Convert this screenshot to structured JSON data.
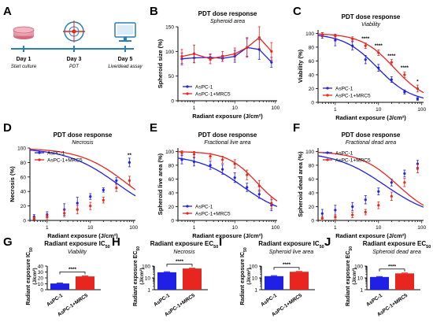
{
  "figure": {
    "panel_letters": [
      "A",
      "B",
      "C",
      "D",
      "E",
      "F",
      "G",
      "H",
      "I",
      "J"
    ],
    "colors": {
      "blue": "#1f1fe6",
      "red": "#e6261f"
    }
  },
  "timeline": {
    "days": [
      {
        "day": "Day 1",
        "label": "Start culture",
        "icon": "culture-dish-icon"
      },
      {
        "day": "Day 3",
        "label": "PDT",
        "icon": "laser-target-icon"
      },
      {
        "day": "Day 5",
        "label": "Live/dead assay",
        "icon": "monitor-icon"
      }
    ]
  },
  "chart_data": [
    {
      "panel": "B",
      "type": "line",
      "title": "PDT dose response",
      "subtitle": "Spheroid area",
      "xlabel": "Radiant exposure (J/cm²)",
      "ylabel": "Spheroid size (%)",
      "xscale": "log",
      "xlim": [
        0.4,
        110
      ],
      "ylim": [
        0,
        150
      ],
      "xticks": [
        1,
        10,
        100
      ],
      "yticks": [
        0,
        50,
        100,
        150
      ],
      "legend": "bottom-left",
      "connect": "line",
      "series": [
        {
          "name": "AsPC-1",
          "color": "blue",
          "x": [
            0.5,
            1,
            2.5,
            5,
            10,
            20,
            40,
            80
          ],
          "y": [
            85,
            87,
            88,
            86,
            90,
            108,
            104,
            78
          ],
          "err": [
            12,
            10,
            6,
            6,
            12,
            18,
            20,
            10
          ]
        },
        {
          "name": "AsPC-1+MRC5",
          "color": "red",
          "x": [
            0.5,
            1,
            2.5,
            5,
            10,
            20,
            40,
            80
          ],
          "y": [
            90,
            95,
            85,
            90,
            95,
            108,
            128,
            100
          ],
          "err": [
            14,
            18,
            10,
            10,
            12,
            20,
            22,
            18
          ]
        }
      ]
    },
    {
      "panel": "C",
      "type": "line",
      "title": "PDT dose response",
      "subtitle": "Viability",
      "xlabel": "Radiant exposure (J/cm²)",
      "ylabel": "Viability (%)",
      "xscale": "log",
      "xlim": [
        0.4,
        110
      ],
      "ylim": [
        0,
        105
      ],
      "xticks": [
        1,
        10,
        100
      ],
      "yticks": [
        0,
        20,
        40,
        60,
        80,
        100
      ],
      "legend": "bottom-left",
      "connect": "fit",
      "series": [
        {
          "name": "AsPC-1",
          "color": "blue",
          "x": [
            0.5,
            1,
            2.5,
            5,
            10,
            20,
            40,
            80
          ],
          "y": [
            97,
            90,
            82,
            62,
            50,
            33,
            15,
            5
          ],
          "err": [
            4,
            8,
            6,
            6,
            5,
            4,
            3,
            2
          ],
          "fit": {
            "top": 100,
            "bottom": 0,
            "ic50": 9.5,
            "hill": 1.1
          }
        },
        {
          "name": "AsPC-1+MRC5",
          "color": "red",
          "x": [
            0.5,
            1,
            2.5,
            5,
            10,
            20,
            40,
            80
          ],
          "y": [
            98,
            96,
            92,
            82,
            72,
            58,
            40,
            20
          ],
          "err": [
            3,
            3,
            3,
            4,
            4,
            4,
            4,
            5
          ],
          "fit": {
            "top": 100,
            "bottom": 0,
            "ic50": 23,
            "hill": 1.15
          }
        }
      ],
      "annotations": [
        {
          "x": 5,
          "y": 90,
          "text": "****"
        },
        {
          "x": 10,
          "y": 80,
          "text": "****"
        },
        {
          "x": 20,
          "y": 65,
          "text": "****"
        },
        {
          "x": 40,
          "y": 48,
          "text": "****"
        },
        {
          "x": 80,
          "y": 28,
          "text": "*"
        }
      ]
    },
    {
      "panel": "D",
      "type": "line",
      "title": "PDT dose response",
      "subtitle": "Necrosis",
      "xlabel": "Radiant exposure (J/cm²)",
      "ylabel": "Necrosis (%)",
      "xscale": "log",
      "xlim": [
        0.4,
        110
      ],
      "ylim": [
        0,
        100
      ],
      "xticks": [
        1,
        10,
        100
      ],
      "yticks": [
        0,
        20,
        40,
        60,
        80,
        100
      ],
      "legend": "top-left",
      "connect": "fit",
      "series": [
        {
          "name": "AsPC-1",
          "color": "blue",
          "x": [
            0.5,
            1,
            2.5,
            5,
            10,
            20,
            40,
            80
          ],
          "y": [
            5,
            8,
            15,
            24,
            33,
            42,
            55,
            80
          ],
          "err": [
            3,
            4,
            8,
            8,
            4,
            3,
            4,
            6
          ],
          "fit": {
            "top": 100,
            "bottom": 3,
            "ic50": 40,
            "hill": 0.75
          }
        },
        {
          "name": "AsPC-1+MRC5",
          "color": "red",
          "x": [
            0.5,
            1,
            2.5,
            5,
            10,
            20,
            40,
            80
          ],
          "y": [
            3,
            5,
            10,
            15,
            20,
            28,
            45,
            55
          ],
          "err": [
            2,
            3,
            5,
            6,
            5,
            4,
            5,
            6
          ],
          "fit": {
            "top": 100,
            "bottom": 2,
            "ic50": 70,
            "hill": 0.8
          }
        }
      ],
      "annotations": [
        {
          "x": 80,
          "y": 88,
          "text": "**"
        }
      ]
    },
    {
      "panel": "E",
      "type": "line",
      "title": "PDT dose response",
      "subtitle": "Fractional live area",
      "xlabel": "Radiant exposure (J/cm²)",
      "ylabel": "Spheroid live area (%)",
      "xscale": "log",
      "xlim": [
        0.4,
        110
      ],
      "ylim": [
        0,
        105
      ],
      "xticks": [
        1,
        10,
        100
      ],
      "yticks": [
        0,
        20,
        40,
        60,
        80,
        100
      ],
      "legend": "bottom-left",
      "connect": "fit",
      "series": [
        {
          "name": "AsPC-1",
          "color": "blue",
          "x": [
            0.5,
            1,
            2.5,
            5,
            10,
            20,
            40,
            80
          ],
          "y": [
            88,
            85,
            80,
            74,
            62,
            48,
            38,
            22
          ],
          "err": [
            6,
            6,
            6,
            7,
            7,
            6,
            6,
            8
          ],
          "fit": {
            "top": 95,
            "bottom": 5,
            "ic50": 15,
            "hill": 0.8
          }
        },
        {
          "name": "AsPC-1+MRC5",
          "color": "red",
          "x": [
            0.5,
            1,
            2.5,
            5,
            10,
            20,
            40,
            80
          ],
          "y": [
            98,
            96,
            93,
            88,
            82,
            66,
            50,
            25
          ],
          "err": [
            3,
            4,
            4,
            5,
            6,
            7,
            8,
            8
          ],
          "fit": {
            "top": 100,
            "bottom": 10,
            "ic50": 35,
            "hill": 1.2
          }
        }
      ]
    },
    {
      "panel": "F",
      "type": "line",
      "title": "PDT dose response",
      "subtitle": "Fractional dead area",
      "xlabel": "Radiant exposure (J/cm²)",
      "ylabel": "Spheroid dead area (%)",
      "xscale": "log",
      "xlim": [
        0.4,
        110
      ],
      "ylim": [
        0,
        105
      ],
      "xticks": [
        1,
        10,
        100
      ],
      "yticks": [
        0,
        20,
        40,
        60,
        80,
        100
      ],
      "legend": "top-left",
      "connect": "fit",
      "series": [
        {
          "name": "AsPC-1",
          "color": "blue",
          "x": [
            0.5,
            1,
            2.5,
            5,
            10,
            20,
            40,
            80
          ],
          "y": [
            10,
            15,
            20,
            30,
            42,
            55,
            68,
            82
          ],
          "err": [
            6,
            7,
            6,
            6,
            5,
            5,
            5,
            5
          ],
          "fit": {
            "top": 100,
            "bottom": 2,
            "ic50": 14,
            "hill": 0.75
          }
        },
        {
          "name": "AsPC-1+MRC5",
          "color": "red",
          "x": [
            0.5,
            1,
            2.5,
            5,
            10,
            20,
            40,
            80
          ],
          "y": [
            3,
            5,
            8,
            12,
            22,
            35,
            55,
            75
          ],
          "err": [
            3,
            3,
            4,
            4,
            5,
            6,
            6,
            6
          ],
          "fit": {
            "top": 100,
            "bottom": 2,
            "ic50": 28,
            "hill": 1.0
          }
        }
      ]
    },
    {
      "panel": "G",
      "type": "bar",
      "title_main": "Radiant exposure IC",
      "title_sub": "50",
      "subtitle": "Viability",
      "ylabel_main": "Radiant exposure IC",
      "ylabel_sub": "50",
      "ylabel_unit": "(J/cm²)",
      "yscale": "linear",
      "ylim": [
        0,
        40
      ],
      "yticks": [
        0,
        10,
        20,
        30,
        40
      ],
      "categories": [
        "AsPC-1",
        "AsPC-1+MRC5"
      ],
      "values": [
        10.5,
        22.5
      ],
      "err": [
        0.8,
        0.8
      ],
      "colors": [
        "blue",
        "red"
      ],
      "significance": "****"
    },
    {
      "panel": "H",
      "type": "bar",
      "title_main": "Radiant exposure EC",
      "title_sub": "50",
      "subtitle": "Necrosis",
      "ylabel_main": "Radiant exposure EC",
      "ylabel_sub": "50",
      "ylabel_unit": "(J/cm²)",
      "yscale": "log",
      "ylim": [
        1,
        100
      ],
      "yticks": [
        1,
        10,
        100
      ],
      "categories": [
        "AsPC-1",
        "AsPC-1+MRC5"
      ],
      "values": [
        30,
        62
      ],
      "err": [
        3,
        5
      ],
      "colors": [
        "blue",
        "red"
      ],
      "significance": "****"
    },
    {
      "panel": "I",
      "type": "bar",
      "title_main": "Radiant exposure IC",
      "title_sub": "50",
      "subtitle": "Spheroid live area",
      "ylabel_main": "Radiant exposure IC",
      "ylabel_sub": "50",
      "ylabel_unit": "(J/cm²)",
      "yscale": "log",
      "ylim": [
        1,
        100
      ],
      "yticks": [
        1,
        10,
        100
      ],
      "categories": [
        "AsPC-1",
        "AsPC-1+MRC5"
      ],
      "values": [
        14,
        33
      ],
      "err": [
        1.5,
        2.5
      ],
      "colors": [
        "blue",
        "red"
      ],
      "significance": "****"
    },
    {
      "panel": "J",
      "type": "bar",
      "title_main": "Radiant exposure EC",
      "title_sub": "50",
      "subtitle": "Spheroid dead area",
      "ylabel_main": "Radiant exposure EC",
      "ylabel_sub": "50",
      "ylabel_unit": "(J/cm²)",
      "yscale": "log",
      "ylim": [
        1,
        100
      ],
      "yticks": [
        1,
        10,
        100
      ],
      "categories": [
        "AsPC-1",
        "AsPC-1+MRC5"
      ],
      "values": [
        12,
        24
      ],
      "err": [
        1,
        2
      ],
      "colors": [
        "blue",
        "red"
      ],
      "significance": "****"
    }
  ]
}
